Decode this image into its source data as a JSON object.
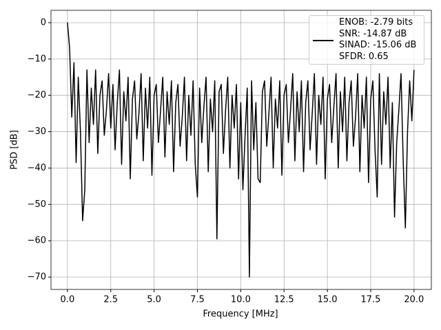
{
  "chart_data": {
    "type": "line",
    "x_label": "Frequency [MHz]",
    "y_label": "PSD [dB]",
    "series": [
      {
        "name": "ENOB: -2.79 bits\nSNR: -14.87 dB\nSINAD: -15.06 dB\nSFDR: 0.65",
        "color": "#000000",
        "x": [
          0,
          0.125,
          0.25,
          0.375,
          0.5,
          0.625,
          0.75,
          0.875,
          1,
          1.125,
          1.25,
          1.375,
          1.5,
          1.625,
          1.75,
          1.875,
          2,
          2.125,
          2.25,
          2.375,
          2.5,
          2.625,
          2.75,
          2.875,
          3,
          3.125,
          3.25,
          3.375,
          3.5,
          3.625,
          3.75,
          3.875,
          4,
          4.125,
          4.25,
          4.375,
          4.5,
          4.625,
          4.75,
          4.875,
          5,
          5.125,
          5.25,
          5.375,
          5.5,
          5.625,
          5.75,
          5.875,
          6,
          6.125,
          6.25,
          6.375,
          6.5,
          6.625,
          6.75,
          6.875,
          7,
          7.125,
          7.25,
          7.375,
          7.5,
          7.625,
          7.75,
          7.875,
          8,
          8.125,
          8.25,
          8.375,
          8.5,
          8.625,
          8.75,
          8.875,
          9,
          9.125,
          9.25,
          9.375,
          9.5,
          9.625,
          9.75,
          9.875,
          10,
          10.125,
          10.25,
          10.375,
          10.5,
          10.625,
          10.75,
          10.875,
          11,
          11.125,
          11.25,
          11.375,
          11.5,
          11.625,
          11.75,
          11.875,
          12,
          12.125,
          12.25,
          12.375,
          12.5,
          12.625,
          12.75,
          12.875,
          13,
          13.125,
          13.25,
          13.375,
          13.5,
          13.625,
          13.75,
          13.875,
          14,
          14.125,
          14.25,
          14.375,
          14.5,
          14.625,
          14.75,
          14.875,
          15,
          15.125,
          15.25,
          15.375,
          15.5,
          15.625,
          15.75,
          15.875,
          16,
          16.125,
          16.25,
          16.375,
          16.5,
          16.625,
          16.75,
          16.875,
          17,
          17.125,
          17.25,
          17.375,
          17.5,
          17.625,
          17.75,
          17.875,
          18,
          18.125,
          18.25,
          18.375,
          18.5,
          18.625,
          18.75,
          18.875,
          19,
          19.125,
          19.25,
          19.375,
          19.5,
          19.625,
          19.75,
          19.875,
          20
        ],
        "values": [
          0,
          -7,
          -26,
          -11,
          -38.5,
          -15,
          -30,
          -54.5,
          -46,
          -13,
          -33,
          -18,
          -28,
          -13,
          -36,
          -20,
          -16,
          -31,
          -24,
          -14,
          -29,
          -17,
          -35,
          -22,
          -13,
          -39,
          -19,
          -27,
          -15,
          -43,
          -21,
          -16,
          -32,
          -25,
          -14,
          -38,
          -18,
          -29,
          -15,
          -42,
          -20,
          -17,
          -33,
          -24,
          -15,
          -37,
          -19,
          -28,
          -16,
          -41,
          -22,
          -17,
          -34,
          -26,
          -15,
          -38,
          -20,
          -31,
          -16,
          -39,
          -48,
          -18,
          -33,
          -23,
          -15,
          -41,
          -21,
          -30,
          -16,
          -59.5,
          -19,
          -17,
          -36,
          -24,
          -15,
          -40,
          -20,
          -29,
          -17,
          -43,
          -22,
          -46,
          -31,
          -18,
          -70,
          -16,
          -35,
          -22,
          -43,
          -44,
          -19,
          -16,
          -34,
          -25,
          -15,
          -40,
          -21,
          -29,
          -16,
          -42,
          -20,
          -17,
          -33,
          -24,
          -14,
          -38,
          -19,
          -30,
          -16,
          -41,
          -22,
          -16,
          -35,
          -25,
          -14,
          -39,
          -20,
          -28,
          -15,
          -43,
          -21,
          -17,
          -33,
          -23,
          -14,
          -40,
          -19,
          -30,
          -15,
          -38,
          -22,
          -16,
          -34,
          -26,
          -14,
          -41,
          -20,
          -29,
          -15,
          -44,
          -21,
          -16,
          -35,
          -48,
          -14,
          -39,
          -19,
          -28,
          -15,
          -40,
          -22,
          -53.5,
          -33,
          -24,
          -14,
          -38,
          -56.5,
          -30,
          -16,
          -27,
          -13
        ]
      }
    ],
    "xlim": [
      -0.95,
      21.0
    ],
    "ylim": [
      -73.4,
      3.4
    ],
    "xticks": [
      {
        "value": 0,
        "label": "0.0"
      },
      {
        "value": 2.5,
        "label": "2.5"
      },
      {
        "value": 5,
        "label": "5.0"
      },
      {
        "value": 7.5,
        "label": "7.5"
      },
      {
        "value": 10,
        "label": "10.0"
      },
      {
        "value": 12.5,
        "label": "12.5"
      },
      {
        "value": 15,
        "label": "15.0"
      },
      {
        "value": 17.5,
        "label": "17.5"
      },
      {
        "value": 20,
        "label": "20.0"
      }
    ],
    "yticks": [
      0,
      {
        "value": -10,
        "label": "−10"
      },
      {
        "value": -20,
        "label": "−20"
      },
      {
        "value": -30,
        "label": "−30"
      },
      {
        "value": -40,
        "label": "−40"
      },
      {
        "value": -50,
        "label": "−50"
      },
      {
        "value": -60,
        "label": "−60"
      },
      {
        "value": -70,
        "label": "−70"
      }
    ],
    "grid": true,
    "legend": "upper right"
  }
}
